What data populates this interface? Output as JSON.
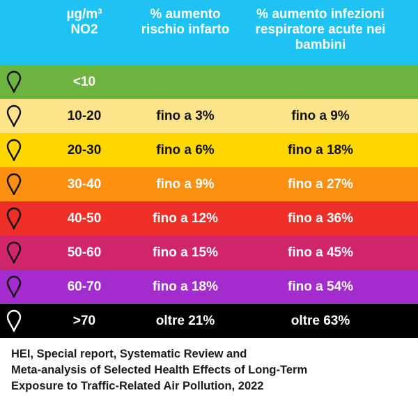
{
  "chart_data": {
    "type": "table",
    "columns": [
      "µg/m³ NO2",
      "% aumento rischio infarto",
      "% aumento infezioni respiratore acute nei bambini"
    ],
    "header": {
      "col1_line1": "µg/m³",
      "col1_line2": "NO2",
      "col2_line1": "% aumento",
      "col2_line2": "rischio infarto",
      "col3_line1": "% aumento infezioni",
      "col3_line2": "respiratore acute nei",
      "col3_line3": "bambini"
    },
    "rows": [
      {
        "range": "<10",
        "infarto": "",
        "infezioni": "",
        "color": "#6cb33f",
        "text_color": "#ffffff",
        "pin_color": "#111111"
      },
      {
        "range": "10-20",
        "infarto": "fino a 3%",
        "infezioni": "fino a 9%",
        "color": "#fde38a",
        "text_color": "#111111",
        "pin_color": "#111111"
      },
      {
        "range": "20-30",
        "infarto": "fino a 6%",
        "infezioni": "fino a 18%",
        "color": "#fed700",
        "text_color": "#111111",
        "pin_color": "#111111"
      },
      {
        "range": "30-40",
        "infarto": "fino a 9%",
        "infezioni": "fino a 27%",
        "color": "#fd8f10",
        "text_color": "#ffffff",
        "pin_color": "#111111"
      },
      {
        "range": "40-50",
        "infarto": "fino a 12%",
        "infezioni": "fino a 36%",
        "color": "#ed2f27",
        "text_color": "#ffffff",
        "pin_color": "#111111"
      },
      {
        "range": "50-60",
        "infarto": "fino a 15%",
        "infezioni": "fino a 45%",
        "color": "#d0246b",
        "text_color": "#ffffff",
        "pin_color": "#111111"
      },
      {
        "range": "60-70",
        "infarto": "fino a 18%",
        "infezioni": "fino a 54%",
        "color": "#a42ccf",
        "text_color": "#ffffff",
        "pin_color": "#111111"
      },
      {
        "range": ">70",
        "infarto": "oltre 21%",
        "infezioni": "oltre 63%",
        "color": "#000000",
        "text_color": "#ffffff",
        "pin_color": "#ffffff"
      }
    ]
  },
  "colors": {
    "header_bg": "#1ec3f4",
    "header_text": "#ffffff"
  },
  "source": {
    "line1": "HEI, Special report, Systematic Review and",
    "line2": "Meta-analysis of Selected Health Effects of Long-Term",
    "line3": "Exposure to Traffic-Related Air Pollution, 2022"
  }
}
